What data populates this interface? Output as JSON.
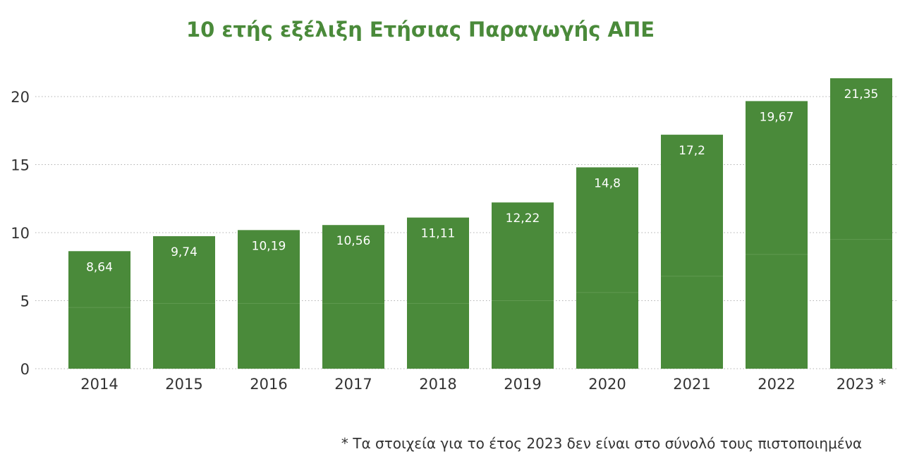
{
  "chart_data": {
    "type": "bar",
    "title": "10 ετής εξέλιξη Ετήσιας Παραγωγής ΑΠΕ",
    "categories": [
      "2014",
      "2015",
      "2016",
      "2017",
      "2018",
      "2019",
      "2020",
      "2021",
      "2022",
      "2023 *"
    ],
    "values": [
      8.64,
      9.74,
      10.19,
      10.56,
      11.11,
      12.22,
      14.8,
      17.2,
      19.67,
      21.35
    ],
    "value_labels": [
      "8,64",
      "9,74",
      "10,19",
      "10,56",
      "11,11",
      "12,22",
      "14,8",
      "17,2",
      "19,67",
      "21,35"
    ],
    "inner_split_values": [
      4.5,
      4.8,
      4.8,
      4.8,
      4.8,
      5.0,
      5.6,
      6.8,
      8.4,
      9.5
    ],
    "yticks": [
      "0",
      "5",
      "10",
      "15",
      "20"
    ],
    "ylim": [
      0,
      22
    ],
    "xlabel": "",
    "ylabel": "",
    "grid": true,
    "bar_color": "#4a8a3a",
    "footnote": "*  Τα στοιχεία για το έτος 2023 δεν είναι στο σύνολό τους πιστοποιημένα"
  }
}
